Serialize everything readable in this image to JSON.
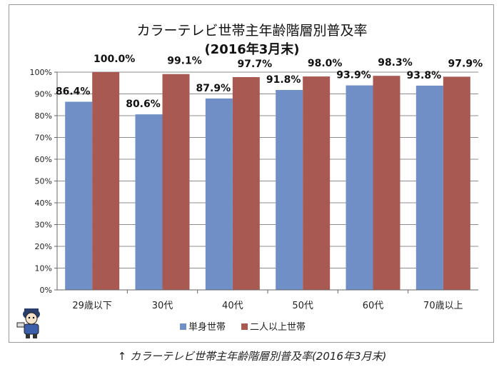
{
  "colors": {
    "series_single": "#6f8fc6",
    "series_multi": "#a85a52",
    "grid": "#8c8c8c",
    "axis": "#666666"
  },
  "caption": "↑ カラーテレビ世帯主年齢階層別普及率(2016年3月末)",
  "mascot": {
    "icon": "reporter-mascot-icon"
  },
  "chart_data": {
    "type": "bar",
    "title": "カラーテレビ世帯主年齢階層別普及率",
    "subtitle": "(2016年3月末)",
    "categories": [
      "29歳以下",
      "30代",
      "40代",
      "50代",
      "60代",
      "70歳以上"
    ],
    "series": [
      {
        "name": "単身世帯",
        "values": [
          86.4,
          80.6,
          87.9,
          91.8,
          93.9,
          93.8
        ]
      },
      {
        "name": "二人以上世帯",
        "values": [
          100.0,
          99.1,
          97.7,
          98.0,
          98.3,
          97.9
        ]
      }
    ],
    "data_labels": [
      [
        "86.4%",
        "80.6%",
        "87.9%",
        "91.8%",
        "93.9%",
        "93.8%"
      ],
      [
        "100.0%",
        "99.1%",
        "97.7%",
        "98.0%",
        "98.3%",
        "97.9%"
      ]
    ],
    "y_ticks": [
      "0%",
      "10%",
      "20%",
      "30%",
      "40%",
      "50%",
      "60%",
      "70%",
      "80%",
      "90%",
      "100%"
    ],
    "ylim": [
      0,
      100
    ],
    "grid": true,
    "legend_position": "bottom"
  }
}
